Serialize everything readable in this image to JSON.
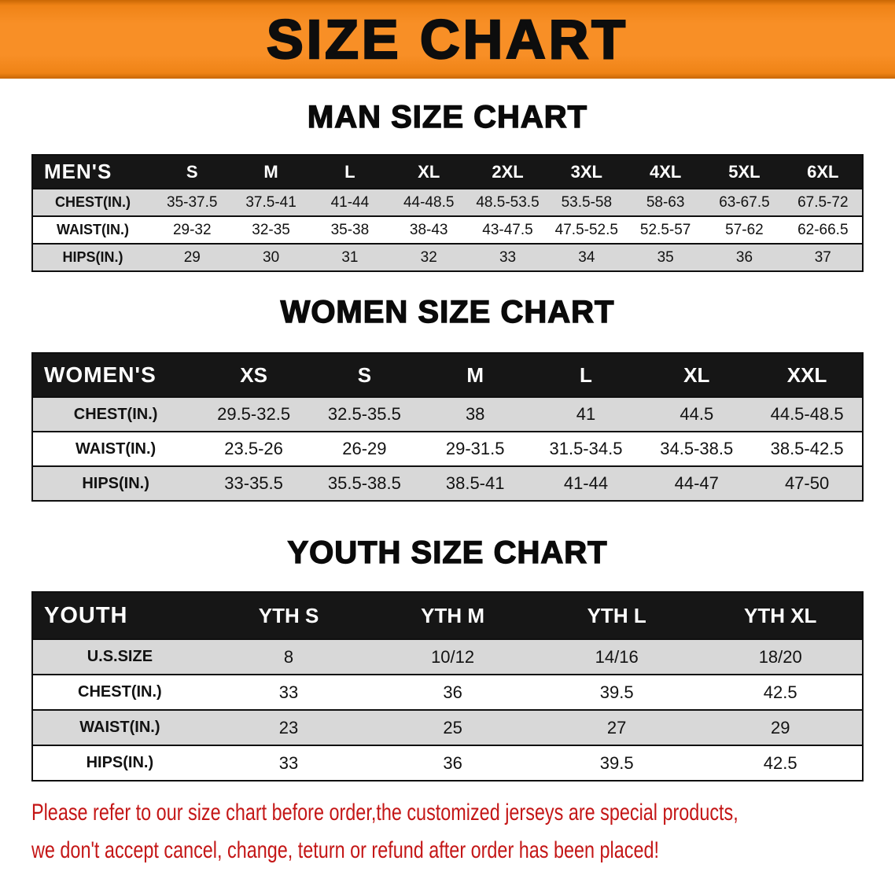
{
  "banner": {
    "title": "SIZE CHART"
  },
  "colors": {
    "banner_orange": "#f88f26",
    "banner_edge": "#c96705",
    "header_black": "#161616",
    "stripe_gray": "#d8d8d8",
    "note_red": "#c41616"
  },
  "men": {
    "title": "MAN SIZE CHART",
    "header": [
      "MEN'S",
      "S",
      "M",
      "L",
      "XL",
      "2XL",
      "3XL",
      "4XL",
      "5XL",
      "6XL"
    ],
    "rows": [
      [
        "CHEST(IN.)",
        "35-37.5",
        "37.5-41",
        "41-44",
        "44-48.5",
        "48.5-53.5",
        "53.5-58",
        "58-63",
        "63-67.5",
        "67.5-72"
      ],
      [
        "WAIST(IN.)",
        "29-32",
        "32-35",
        "35-38",
        "38-43",
        "43-47.5",
        "47.5-52.5",
        "52.5-57",
        "57-62",
        "62-66.5"
      ],
      [
        "HIPS(IN.)",
        "29",
        "30",
        "31",
        "32",
        "33",
        "34",
        "35",
        "36",
        "37"
      ]
    ]
  },
  "women": {
    "title": "WOMEN SIZE CHART",
    "header": [
      "WOMEN'S",
      "XS",
      "S",
      "M",
      "L",
      "XL",
      "XXL"
    ],
    "rows": [
      [
        "CHEST(IN.)",
        "29.5-32.5",
        "32.5-35.5",
        "38",
        "41",
        "44.5",
        "44.5-48.5"
      ],
      [
        "WAIST(IN.)",
        "23.5-26",
        "26-29",
        "29-31.5",
        "31.5-34.5",
        "34.5-38.5",
        "38.5-42.5"
      ],
      [
        "HIPS(IN.)",
        "33-35.5",
        "35.5-38.5",
        "38.5-41",
        "41-44",
        "44-47",
        "47-50"
      ]
    ]
  },
  "youth": {
    "title": "YOUTH SIZE CHART",
    "header": [
      "YOUTH",
      "YTH S",
      "YTH M",
      "YTH L",
      "YTH XL"
    ],
    "rows": [
      [
        "U.S.SIZE",
        "8",
        "10/12",
        "14/16",
        "18/20"
      ],
      [
        "CHEST(IN.)",
        "33",
        "36",
        "39.5",
        "42.5"
      ],
      [
        "WAIST(IN.)",
        "23",
        "25",
        "27",
        "29"
      ],
      [
        "HIPS(IN.)",
        "33",
        "36",
        "39.5",
        "42.5"
      ]
    ]
  },
  "note": {
    "line1": "Please refer to our size chart before order,the customized jerseys are special products,",
    "line2": "we don't accept cancel, change, teturn or refund after order has been placed!"
  }
}
